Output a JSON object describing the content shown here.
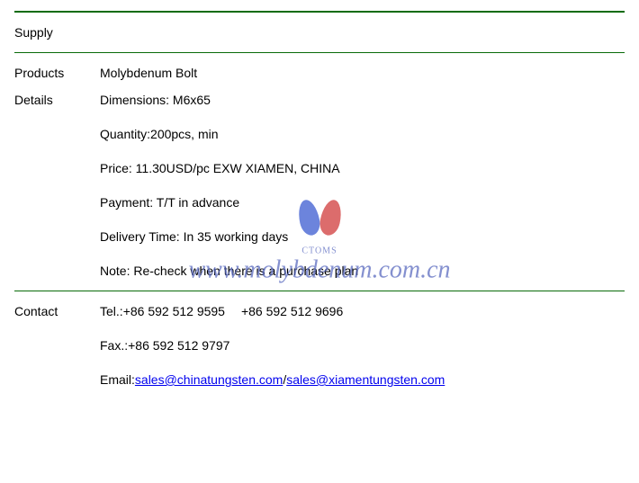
{
  "borders": {
    "thick_color": "#0a6b0a",
    "thin_color": "#0a6b0a"
  },
  "supply": {
    "label": "Supply"
  },
  "products": {
    "label": "Products",
    "value": "Molybdenum Bolt"
  },
  "details": {
    "label": "Details",
    "lines": {
      "dimensions": "Dimensions: M6x65",
      "quantity": "Quantity:200pcs, min",
      "price": "Price: 11.30USD/pc EXW XIAMEN, CHINA",
      "payment": "Payment: T/T in advance",
      "delivery": "Delivery Time: In 35 working days",
      "note": "Note: Re-check when there is a purchase plan"
    }
  },
  "contact": {
    "label": "Contact",
    "tel_label": "Tel.:",
    "tel1": "+86 592 512 9595",
    "tel2": "+86 592 512 9696",
    "fax_label": "Fax.:",
    "fax": "+86 592 512 9797",
    "email_label": "Email:",
    "email1": "sales@chinatungsten.com",
    "email_sep": "/",
    "email2": "sales@xiamentungsten.com"
  },
  "watermark": {
    "text": "www.molybdenum.com.cn",
    "sub": "CTOMS",
    "color": "#5b6bc0",
    "flame_left": "#3b5bd1",
    "flame_right": "#d13b3b",
    "fontsize": 28
  }
}
